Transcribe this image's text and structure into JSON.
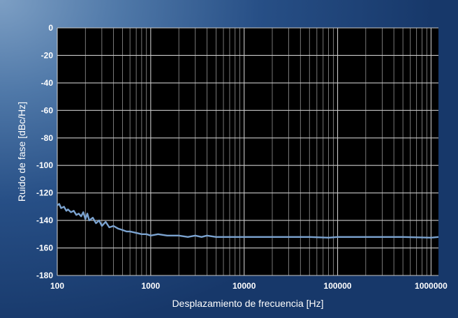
{
  "chart_data": {
    "type": "line",
    "title": "",
    "xlabel": "Desplazamiento de frecuencia [Hz]",
    "ylabel": "Ruido de fase [dBc/Hz]",
    "xscale": "log",
    "xlim": [
      100,
      1200000
    ],
    "ylim": [
      -180,
      0
    ],
    "xticks": [
      100,
      1000,
      10000,
      100000,
      1000000
    ],
    "xtick_labels": [
      "100",
      "1000",
      "10000",
      "100000",
      "1000000"
    ],
    "yticks": [
      0,
      -20,
      -40,
      -60,
      -80,
      -100,
      -120,
      -140,
      -160,
      -180
    ],
    "ytick_labels": [
      "0",
      "-20",
      "-40",
      "-60",
      "-80",
      "-100",
      "-120",
      "-140",
      "-160",
      "-180"
    ],
    "grid": true,
    "legend": "none",
    "colors": {
      "plot_background": "#000000",
      "grid": "#c8c8c8",
      "line": "#7ba3d0",
      "text": "#ffffff"
    },
    "series": [
      {
        "x": [
          100,
          105,
          110,
          118,
          125,
          130,
          140,
          150,
          160,
          170,
          180,
          190,
          200,
          210,
          220,
          240,
          260,
          280,
          300,
          330,
          360,
          400,
          450,
          500,
          550,
          600,
          700,
          800,
          900,
          1000,
          1200,
          1500,
          2000,
          2500,
          3000,
          3500,
          4000,
          5000,
          7000,
          10000,
          20000,
          50000,
          80000,
          100000,
          120000,
          200000,
          500000,
          1000000,
          1200000
        ],
        "y": [
          -129,
          -128,
          -131,
          -130,
          -133,
          -132,
          -134,
          -133,
          -136,
          -135,
          -137,
          -134,
          -139,
          -135,
          -140,
          -138,
          -142,
          -140,
          -144,
          -141,
          -145,
          -144,
          -146,
          -147,
          -148,
          -148,
          -149,
          -150,
          -150,
          -151,
          -150,
          -151,
          -151,
          -152,
          -151,
          -152,
          -151,
          -152,
          -152,
          -152,
          -152,
          -152,
          -152.5,
          -152,
          -152,
          -152,
          -152,
          -152.5,
          -152
        ]
      }
    ]
  }
}
